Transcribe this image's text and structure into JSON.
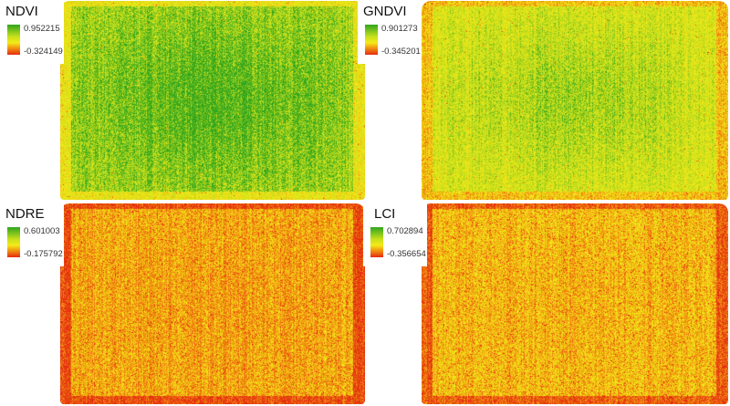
{
  "panels": [
    {
      "title": "NDVI",
      "max": "0.952215",
      "min": "-0.324149",
      "greenness": 0.78
    },
    {
      "title": "GNDVI",
      "max": "0.901273",
      "min": "-0.345201",
      "greenness": 0.62
    },
    {
      "title": "NDRE",
      "max": "0.601003",
      "min": "-0.175792",
      "greenness": 0.35
    },
    {
      "title": "LCI",
      "max": "0.702894",
      "min": "-0.356654",
      "greenness": 0.4
    }
  ],
  "colormap": [
    "#e52a10",
    "#f08a10",
    "#f4ea18",
    "#c8e01c",
    "#2fa51e"
  ]
}
